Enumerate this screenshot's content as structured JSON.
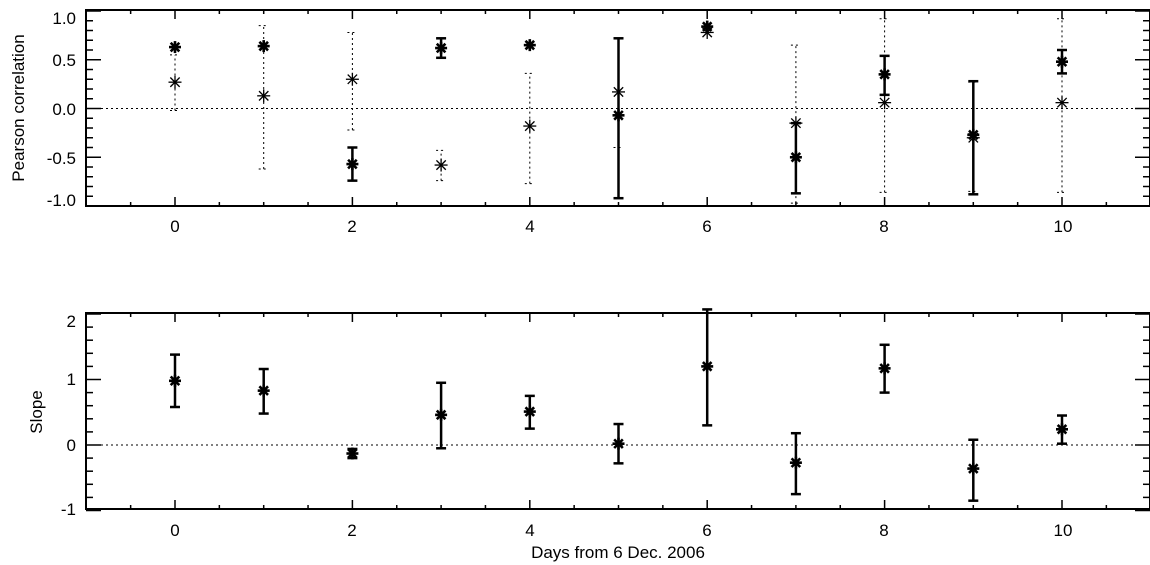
{
  "chart_data": [
    {
      "type": "scatter",
      "title": "",
      "xlabel": "",
      "ylabel": "Pearson correlation",
      "xlim": [
        -1,
        11
      ],
      "ylim": [
        -1.05,
        1.05
      ],
      "x_ticks": [
        "0",
        "2",
        "4",
        "6",
        "8",
        "10"
      ],
      "y_ticks": [
        "-1.0",
        "-0.5",
        "0.0",
        "0.5",
        "1.0"
      ],
      "reference_line": 0,
      "series": [
        {
          "style": "bold",
          "x": [
            0,
            1,
            2,
            3,
            4,
            5,
            6,
            7,
            8,
            9,
            10
          ],
          "y": [
            0.63,
            0.64,
            -0.57,
            0.62,
            0.65,
            -0.07,
            0.84,
            -0.5,
            0.35,
            -0.27,
            0.48
          ],
          "err_low": [
            0.63,
            0.64,
            -0.74,
            0.52,
            0.65,
            -0.92,
            0.84,
            -0.87,
            0.14,
            -0.88,
            0.36
          ],
          "err_high": [
            0.63,
            0.64,
            -0.4,
            0.72,
            0.65,
            0.72,
            0.84,
            -0.15,
            0.54,
            0.28,
            0.6
          ]
        },
        {
          "style": "dotted",
          "x": [
            0,
            1,
            2,
            3,
            4,
            5,
            6,
            7,
            8,
            9,
            10
          ],
          "y": [
            0.27,
            0.13,
            0.3,
            -0.58,
            -0.18,
            0.17,
            0.78,
            -0.15,
            0.06,
            -0.3,
            0.06
          ],
          "err_low": [
            -0.02,
            -0.62,
            -0.22,
            -0.74,
            -0.77,
            -0.4,
            0.78,
            -0.97,
            -0.86,
            -0.85,
            -0.86
          ],
          "err_high": [
            0.55,
            0.85,
            0.78,
            -0.43,
            0.36,
            0.72,
            0.78,
            0.65,
            0.92,
            0.27,
            0.92
          ]
        }
      ]
    },
    {
      "type": "scatter",
      "title": "",
      "xlabel": "Days from 6 Dec. 2006",
      "ylabel": "Slope",
      "xlim": [
        -1,
        11
      ],
      "ylim": [
        -1.05,
        2.05
      ],
      "x_ticks": [
        "0",
        "2",
        "4",
        "6",
        "8",
        "10"
      ],
      "y_ticks": [
        "-1",
        "0",
        "1",
        "2"
      ],
      "reference_line": 0,
      "series": [
        {
          "style": "bold",
          "x": [
            0,
            1,
            2,
            3,
            4,
            5,
            6,
            7,
            8,
            9,
            10
          ],
          "y": [
            0.98,
            0.83,
            -0.13,
            0.46,
            0.51,
            0.02,
            1.2,
            -0.27,
            1.17,
            -0.36,
            0.24
          ],
          "err_low": [
            0.58,
            0.48,
            -0.2,
            -0.05,
            0.25,
            -0.28,
            0.3,
            -0.75,
            0.8,
            -0.85,
            0.02
          ],
          "err_high": [
            1.38,
            1.16,
            -0.06,
            0.95,
            0.75,
            0.32,
            2.07,
            0.18,
            1.53,
            0.08,
            0.45
          ]
        }
      ]
    }
  ]
}
